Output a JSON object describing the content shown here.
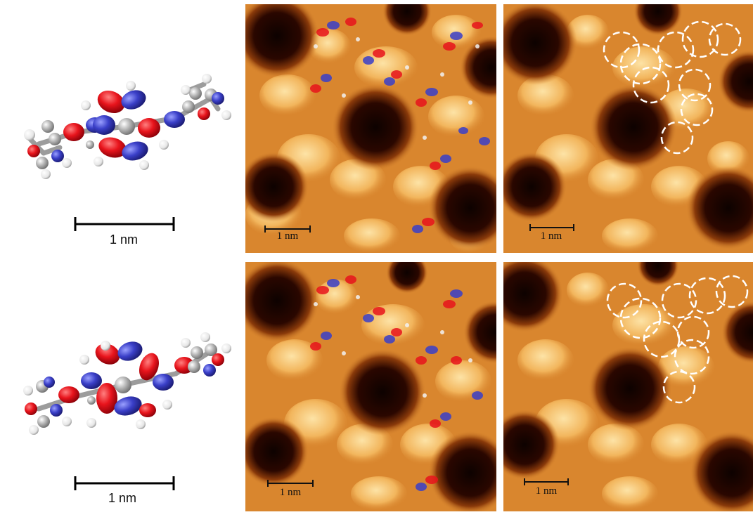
{
  "figure": {
    "panels": [
      {
        "id": "mol-top",
        "scale_label": "1 nm"
      },
      {
        "id": "stm-top-overlay",
        "scale_label": "1 nm"
      },
      {
        "id": "stm-top-plain",
        "scale_label": "1 nm"
      },
      {
        "id": "mol-bottom",
        "scale_label": "1 nm"
      },
      {
        "id": "stm-bottom-overlay",
        "scale_label": "1 nm"
      },
      {
        "id": "stm-bottom-plain",
        "scale_label": "1 nm"
      }
    ]
  },
  "colors": {
    "orbital_red": "#e8141c",
    "orbital_blue": "#3a3fc8",
    "atom_gray": "#a8a8a8",
    "hydrogen": "#f2f2f2",
    "stm_bright": "#f7c577",
    "stm_mid": "#d9862e",
    "stm_dark": "#1a0500",
    "circle_dash": "#ffffff"
  }
}
